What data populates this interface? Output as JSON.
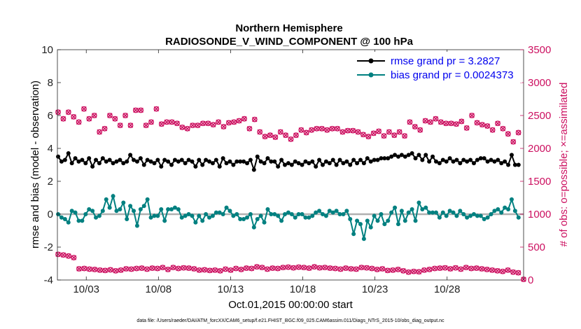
{
  "chart_data": {
    "type": "line",
    "title": "Northern Hemisphere",
    "subtitle": "RADIOSONDE_V_WIND_COMPONENT @ 100 hPa",
    "xlabel": "Oct.01,2015 00:00:00 start",
    "ylabel": "rmse and bias (model - observation)",
    "y2label": "# of obs: o=possible; ×=assimilated",
    "footnote": "data file: /Users/raeder/DAI/ATM_forcXX/CAM6_setup/f.e21.FHIST_BGC.f09_025.CAM6assim.011/Diags_NTrS_2015-10/obs_diag_output.nc",
    "xlim": [
      0,
      32.3
    ],
    "ylim": [
      -4,
      10
    ],
    "y2lim": [
      0,
      3500
    ],
    "x_ticks": [
      2,
      7,
      12,
      17,
      22,
      27
    ],
    "x_tick_labels": [
      "10/03",
      "10/08",
      "10/13",
      "10/18",
      "10/23",
      "10/28"
    ],
    "y_ticks": [
      -4,
      -2,
      0,
      2,
      4,
      6,
      8,
      10
    ],
    "y_tick_labels": [
      "-4",
      "-2",
      "0",
      "2",
      "4",
      "6",
      "8",
      "10"
    ],
    "y2_ticks": [
      0,
      500,
      1000,
      1500,
      2000,
      2500,
      3000,
      3500
    ],
    "y2_tick_labels": [
      "0",
      "500",
      "1000",
      "1500",
      "2000",
      "2500",
      "3000",
      "3500"
    ],
    "x_start": 0.25,
    "x_step": 0.25,
    "series": [
      {
        "name": "rmse grand pr = 3.2827",
        "axis": "left",
        "color": "#000000",
        "marker": "o",
        "values": [
          3.5,
          3.2,
          3.3,
          3.7,
          3.1,
          3.4,
          3.2,
          3.3,
          3.1,
          3.4,
          2.9,
          3.3,
          3.1,
          3.4,
          3.2,
          3.3,
          3.1,
          3.2,
          3.3,
          3.1,
          3.2,
          3.6,
          3.3,
          3.2,
          3.4,
          3.0,
          3.3,
          3.2,
          3.1,
          3.3,
          2.9,
          3.3,
          3.2,
          3.0,
          3.3,
          3.2,
          3.3,
          3.1,
          3.3,
          3.2,
          2.9,
          3.3,
          3.0,
          3.3,
          3.2,
          3.1,
          3.3,
          2.9,
          3.4,
          3.1,
          3.2,
          3.0,
          3.2,
          3.2,
          3.2,
          3.1,
          3.3,
          2.7,
          3.5,
          3.2,
          3.1,
          3.4,
          3.2,
          3.2,
          2.9,
          3.3,
          3.0,
          3.1,
          3.0,
          3.2,
          3.1,
          3.0,
          3.2,
          3.1,
          3.2,
          2.9,
          3.3,
          3.0,
          3.2,
          3.1,
          3.3,
          3.0,
          3.3,
          3.1,
          3.2,
          3.0,
          3.3,
          3.1,
          3.3,
          3.1,
          3.4,
          3.2,
          3.3,
          3.3,
          3.4,
          3.4,
          3.4,
          3.5,
          3.6,
          3.5,
          3.6,
          3.5,
          3.6,
          3.7,
          3.4,
          3.6,
          3.3,
          3.6,
          3.2,
          3.5,
          3.2,
          3.1,
          3.3,
          3.2,
          3.4,
          3.2,
          3.3,
          3.1,
          3.3,
          3.2,
          3.3,
          3.1,
          3.3,
          3.4,
          3.4,
          3.2,
          3.3,
          3.2,
          3.3,
          3.1,
          3.2,
          3.0,
          3.6,
          3.0,
          3.0
        ]
      },
      {
        "name": "bias grand pr = 0.0024373",
        "axis": "left",
        "color": "#008080",
        "marker": "o",
        "values": [
          0.0,
          -0.2,
          -0.3,
          -0.5,
          0.2,
          0.1,
          -0.4,
          -0.4,
          0.0,
          0.3,
          0.2,
          -0.2,
          -0.1,
          0.2,
          0.9,
          0.4,
          1.1,
          0.2,
          0.3,
          0.7,
          -0.3,
          0.5,
          0.2,
          -0.7,
          0.3,
          0.5,
          0.9,
          -0.2,
          -0.1,
          -0.1,
          0.3,
          -0.4,
          0.3,
          0.3,
          0.4,
          0.3,
          -0.2,
          -0.1,
          0.0,
          -0.1,
          -0.5,
          -0.1,
          -0.4,
          0.0,
          -0.2,
          -0.1,
          0.1,
          0.1,
          0.0,
          0.4,
          0.2,
          -0.1,
          0.0,
          -0.3,
          -0.3,
          -0.2,
          0.0,
          -0.8,
          -0.3,
          -0.1,
          -0.5,
          0.3,
          0.0,
          0.0,
          -0.1,
          -0.4,
          0.0,
          0.1,
          0.0,
          -0.2,
          0.0,
          0.0,
          -0.2,
          -0.2,
          -0.1,
          0.1,
          0.2,
          0.0,
          -0.1,
          0.2,
          0.1,
          0.2,
          0.0,
          0.0,
          0.2,
          -0.3,
          -1.2,
          -0.4,
          -0.6,
          -1.5,
          -0.4,
          -0.8,
          -0.1,
          -0.4,
          0.0,
          -0.6,
          -0.4,
          0.1,
          0.4,
          -0.6,
          0.2,
          -0.4,
          0.1,
          0.3,
          -0.4,
          0.7,
          0.3,
          0.4,
          0.1,
          0.1,
          0.1,
          -0.2,
          0.1,
          -0.1,
          0.2,
          0.1,
          -0.1,
          0.2,
          0.0,
          -0.2,
          -0.1,
          0.0,
          -0.1,
          -0.1,
          -0.3,
          -0.2,
          0.0,
          0.2,
          0.3,
          0.1,
          0.4,
          0.3,
          0.9,
          0.2,
          -0.2
        ]
      },
      {
        "name": "obs possible",
        "axis": "right",
        "color": "#cc1060",
        "marker": "circle",
        "values": [
          2550,
          2450,
          2550,
          2480,
          2400,
          2600,
          2450,
          2500,
          2250,
          2300,
          2500,
          2450,
          2350,
          2500,
          2350,
          2580,
          2580,
          2350,
          2400,
          2600,
          2370,
          2400,
          2400,
          2380,
          2320,
          2300,
          2350,
          2350,
          2380,
          2380,
          2360,
          2400,
          2330,
          2390,
          2400,
          2420,
          2450,
          2300,
          2440,
          2250,
          2180,
          2200,
          2170,
          2250,
          2200,
          2140,
          2200,
          2280,
          2240,
          2280,
          2300,
          2300,
          2280,
          2300,
          2300,
          2250,
          2270,
          2270,
          2250,
          2210,
          2180,
          2230,
          2260,
          2190,
          2250,
          2200,
          2250,
          2190,
          2400,
          2330,
          2280,
          2420,
          2400,
          2450,
          2400,
          2380,
          2380,
          2370,
          2410,
          2310,
          2500,
          2390,
          2360,
          2340,
          2280,
          2380,
          2300,
          2220,
          2100,
          2240
        ],
        "values_offset": 0
      },
      {
        "name": "obs assimilated",
        "axis": "right",
        "color": "#cc1060",
        "marker": "x",
        "values": [
          2520,
          2420,
          2520,
          2460,
          2380,
          2570,
          2430,
          2470,
          2230,
          2280,
          2470,
          2420,
          2330,
          2470,
          2330,
          2550,
          2550,
          2330,
          2380,
          2570,
          2350,
          2380,
          2380,
          2360,
          2300,
          2280,
          2330,
          2330,
          2360,
          2360,
          2340,
          2380,
          2310,
          2370,
          2380,
          2400,
          2430,
          2280,
          2420,
          2230,
          2160,
          2180,
          2150,
          2230,
          2180,
          2120,
          2180,
          2260,
          2220,
          2260,
          2280,
          2280,
          2260,
          2280,
          2280,
          2230,
          2250,
          2250,
          2230,
          2190,
          2160,
          2210,
          2240,
          2170,
          2230,
          2180,
          2230,
          2170,
          2380,
          2310,
          2260,
          2400,
          2380,
          2430,
          2380,
          2360,
          2360,
          2350,
          2390,
          2290,
          2480,
          2370,
          2340,
          2320,
          2260,
          2360,
          2280,
          2200,
          2080,
          2220
        ],
        "values_offset": 0
      }
    ],
    "lower_obs": {
      "name": "obs count lower",
      "axis": "right",
      "color": "#cc1060",
      "values": [
        390,
        380,
        365,
        340,
        170,
        175,
        165,
        160,
        150,
        145,
        155,
        140,
        150,
        170,
        165,
        175,
        180,
        165,
        180,
        175,
        190,
        160,
        190,
        175,
        185,
        180,
        170,
        150,
        155,
        145,
        150,
        140,
        165,
        150,
        175,
        160,
        180,
        175,
        200,
        190,
        165,
        180,
        175,
        190,
        195,
        185,
        195,
        190,
        180,
        200,
        185,
        190,
        180,
        175,
        165,
        180,
        170,
        165,
        190,
        185,
        175,
        160,
        170,
        145,
        150,
        160,
        140,
        120,
        130,
        125,
        150,
        160,
        175,
        180,
        185,
        170,
        185,
        165,
        190,
        175,
        180,
        170,
        160,
        150,
        140,
        130,
        150,
        120,
        110,
        10
      ]
    }
  }
}
